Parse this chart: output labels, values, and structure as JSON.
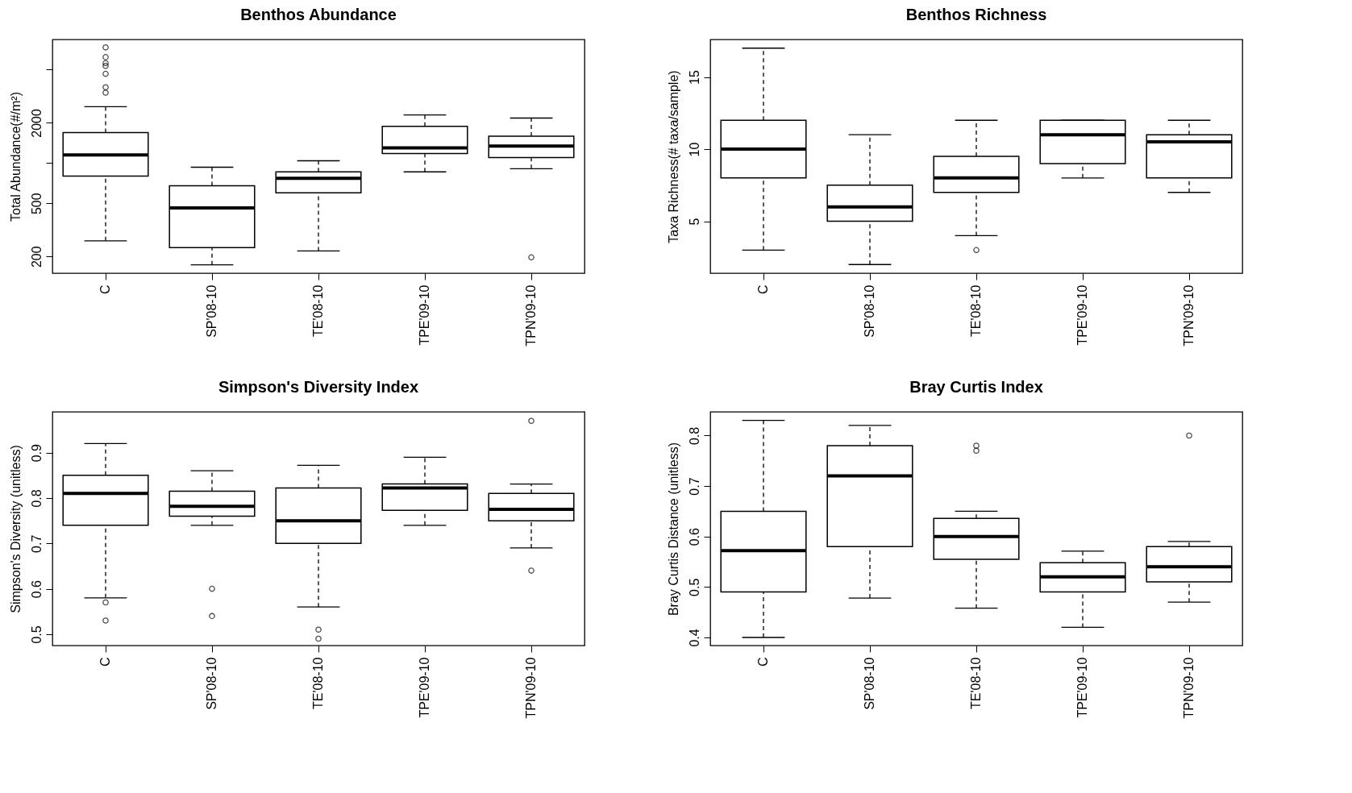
{
  "chart_data": [
    {
      "type": "box",
      "title": "Benthos Abundance",
      "ylabel": "Total Abundance(#/m²)",
      "log": true,
      "categories": [
        "C",
        "SP'08-10",
        "TE'08-10",
        "TPE'09-10",
        "TPN'09-10"
      ],
      "ylim": [
        150,
        8400
      ],
      "yticks": [
        200,
        500,
        {
          "value": 1000,
          "label": null
        },
        2000,
        {
          "value": 5000,
          "label": null
        }
      ],
      "boxes": [
        {
          "low": 262,
          "q1": 800,
          "median": 1150,
          "q3": 1690,
          "high": 2640,
          "outliers": [
            3360,
            3690,
            4650,
            5330,
            5590,
            6200,
            7330
          ]
        },
        {
          "low": 173,
          "q1": 233,
          "median": 461,
          "q3": 677,
          "high": 931
        },
        {
          "low": 220,
          "q1": 600,
          "median": 769,
          "q3": 859,
          "high": 1040
        },
        {
          "low": 859,
          "q1": 1180,
          "median": 1300,
          "q3": 1880,
          "high": 2290
        },
        {
          "low": 908,
          "q1": 1100,
          "median": 1340,
          "q3": 1590,
          "high": 2170,
          "outliers": [
            197
          ]
        }
      ]
    },
    {
      "type": "box",
      "title": "Benthos Richness",
      "ylabel": "Taxa Richness(# taxa/sample)",
      "categories": [
        "C",
        "SP'08-10",
        "TE'08-10",
        "TPE'09-10",
        "TPN'09-10"
      ],
      "ylim": [
        1.4,
        17.6
      ],
      "yticks": [
        5,
        10,
        15
      ],
      "boxes": [
        {
          "low": 3,
          "q1": 8,
          "median": 10,
          "q3": 12,
          "high": 17
        },
        {
          "low": 2,
          "q1": 5,
          "median": 6,
          "q3": 7.5,
          "high": 11
        },
        {
          "low": 4,
          "q1": 7,
          "median": 8,
          "q3": 9.5,
          "high": 12,
          "outliers": [
            3
          ]
        },
        {
          "low": 8,
          "q1": 9,
          "median": 11,
          "q3": 12,
          "high": 12
        },
        {
          "low": 7,
          "q1": 8,
          "median": 10.5,
          "q3": 11,
          "high": 12
        }
      ]
    },
    {
      "type": "box",
      "title": "Simpson's Diversity Index",
      "ylabel": "Simpson's Diversity (unitless)",
      "categories": [
        "C",
        "SP'08-10",
        "TE'08-10",
        "TPE'09-10",
        "TPN'09-10"
      ],
      "ylim": [
        0.475,
        0.99
      ],
      "yticks": [
        0.5,
        0.6,
        0.7,
        0.8,
        0.9
      ],
      "boxes": [
        {
          "low": 0.58,
          "q1": 0.74,
          "median": 0.81,
          "q3": 0.85,
          "high": 0.92,
          "outliers": [
            0.57,
            0.53
          ]
        },
        {
          "low": 0.74,
          "q1": 0.76,
          "median": 0.782,
          "q3": 0.815,
          "high": 0.86,
          "outliers": [
            0.6,
            0.54
          ]
        },
        {
          "low": 0.56,
          "q1": 0.7,
          "median": 0.75,
          "q3": 0.822,
          "high": 0.872,
          "outliers": [
            0.51,
            0.49
          ]
        },
        {
          "low": 0.74,
          "q1": 0.773,
          "median": 0.822,
          "q3": 0.831,
          "high": 0.89
        },
        {
          "low": 0.69,
          "q1": 0.75,
          "median": 0.775,
          "q3": 0.81,
          "high": 0.831,
          "outliers": [
            0.97,
            0.64
          ]
        }
      ]
    },
    {
      "type": "box",
      "title": "Bray Curtis Index",
      "ylabel": "Bray Curtis Distance (unitless)",
      "categories": [
        "C",
        "SP'08-10",
        "TE'08-10",
        "TPE'09-10",
        "TPN'09-10"
      ],
      "ylim": [
        0.384,
        0.847
      ],
      "yticks": [
        0.4,
        0.5,
        0.6,
        0.7,
        0.8
      ],
      "boxes": [
        {
          "low": 0.4,
          "q1": 0.49,
          "median": 0.572,
          "q3": 0.65,
          "high": 0.83
        },
        {
          "low": 0.478,
          "q1": 0.58,
          "median": 0.72,
          "q3": 0.78,
          "high": 0.82
        },
        {
          "low": 0.458,
          "q1": 0.555,
          "median": 0.6,
          "q3": 0.636,
          "high": 0.65,
          "outliers": [
            0.78,
            0.77
          ]
        },
        {
          "low": 0.42,
          "q1": 0.49,
          "median": 0.52,
          "q3": 0.548,
          "high": 0.571
        },
        {
          "low": 0.47,
          "q1": 0.51,
          "median": 0.54,
          "q3": 0.58,
          "high": 0.59,
          "outliers": [
            0.8
          ]
        }
      ]
    }
  ]
}
